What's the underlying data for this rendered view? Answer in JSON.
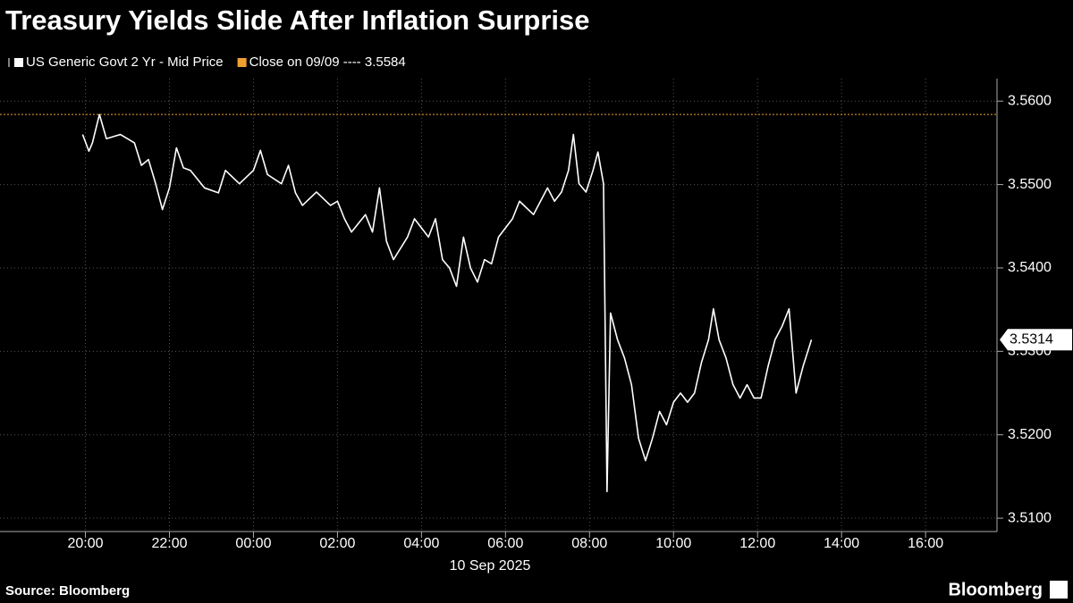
{
  "chart_data": {
    "type": "line",
    "title": "Treasury Yields Slide After Inflation Surprise",
    "xlabel": "10 Sep 2025",
    "source": "Source: Bloomberg",
    "brand": "Bloomberg",
    "x": [
      "19:56",
      "20:05",
      "20:10",
      "20:20",
      "20:30",
      "20:50",
      "21:10",
      "21:20",
      "21:30",
      "21:40",
      "21:50",
      "22:00",
      "22:10",
      "22:20",
      "22:30",
      "22:50",
      "23:10",
      "23:20",
      "23:40",
      "00:00",
      "00:10",
      "00:20",
      "00:40",
      "00:50",
      "01:00",
      "01:10",
      "01:30",
      "01:50",
      "02:00",
      "02:10",
      "02:20",
      "02:40",
      "02:50",
      "03:00",
      "03:10",
      "03:20",
      "03:40",
      "03:50",
      "04:10",
      "04:20",
      "04:30",
      "04:40",
      "04:50",
      "05:00",
      "05:10",
      "05:20",
      "05:30",
      "05:40",
      "05:50",
      "06:00",
      "06:10",
      "06:20",
      "06:40",
      "06:50",
      "07:00",
      "07:10",
      "07:20",
      "07:30",
      "07:37",
      "07:45",
      "07:55",
      "08:05",
      "08:12",
      "08:20",
      "08:25",
      "08:30",
      "08:40",
      "08:50",
      "09:00",
      "09:10",
      "09:20",
      "09:30",
      "09:40",
      "09:50",
      "10:00",
      "10:10",
      "10:20",
      "10:30",
      "10:40",
      "10:50",
      "10:57",
      "11:05",
      "11:15",
      "11:25",
      "11:35",
      "11:45",
      "11:55",
      "12:05",
      "12:15",
      "12:25",
      "12:35",
      "12:45",
      "12:55",
      "13:05",
      "13:17"
    ],
    "series": [
      {
        "name": "US Generic Govt 2 Yr - Mid Price",
        "color": "#ffffff",
        "values": [
          3.556,
          3.554,
          3.555,
          3.5584,
          3.5555,
          3.556,
          3.555,
          3.5523,
          3.553,
          3.5502,
          3.547,
          3.5496,
          3.5544,
          3.552,
          3.5517,
          3.5496,
          3.549,
          3.5517,
          3.5501,
          3.5517,
          3.5541,
          3.5512,
          3.5501,
          3.5523,
          3.549,
          3.5475,
          3.5491,
          3.5475,
          3.548,
          3.5459,
          3.5443,
          3.5464,
          3.5443,
          3.5496,
          3.5432,
          3.541,
          3.5437,
          3.5459,
          3.5437,
          3.5459,
          3.541,
          3.54,
          3.5378,
          3.5437,
          3.54,
          3.5383,
          3.541,
          3.5405,
          3.5437,
          3.5448,
          3.5459,
          3.548,
          3.5464,
          3.548,
          3.5496,
          3.548,
          3.5491,
          3.5517,
          3.556,
          3.5501,
          3.5491,
          3.5517,
          3.5539,
          3.5501,
          3.5132,
          3.5346,
          3.5314,
          3.5292,
          3.526,
          3.5196,
          3.5169,
          3.5196,
          3.5228,
          3.5212,
          3.5239,
          3.525,
          3.5239,
          3.525,
          3.5287,
          3.5314,
          3.5351,
          3.5314,
          3.5292,
          3.526,
          3.5244,
          3.526,
          3.5244,
          3.5244,
          3.5282,
          3.5314,
          3.533,
          3.5351,
          3.525,
          3.5282,
          3.5314
        ]
      }
    ],
    "reference_lines": [
      {
        "label": "Close on 09/09 ---- 3.5584",
        "value": 3.5584,
        "color": "#f0a030"
      }
    ],
    "xlim": [
      "17:58",
      "17:42"
    ],
    "xticks": [
      "20:00",
      "22:00",
      "00:00",
      "02:00",
      "04:00",
      "06:00",
      "08:00",
      "10:00",
      "12:00",
      "14:00",
      "16:00"
    ],
    "ylim": [
      3.5084,
      3.5627
    ],
    "yticks": [
      {
        "value": 3.51,
        "label": "3.5100"
      },
      {
        "value": 3.52,
        "label": "3.5200"
      },
      {
        "value": 3.53,
        "label": "3.5300"
      },
      {
        "value": 3.54,
        "label": "3.5400"
      },
      {
        "value": 3.55,
        "label": "3.5500"
      },
      {
        "value": 3.56,
        "label": "3.5600"
      }
    ],
    "grid": true
  }
}
